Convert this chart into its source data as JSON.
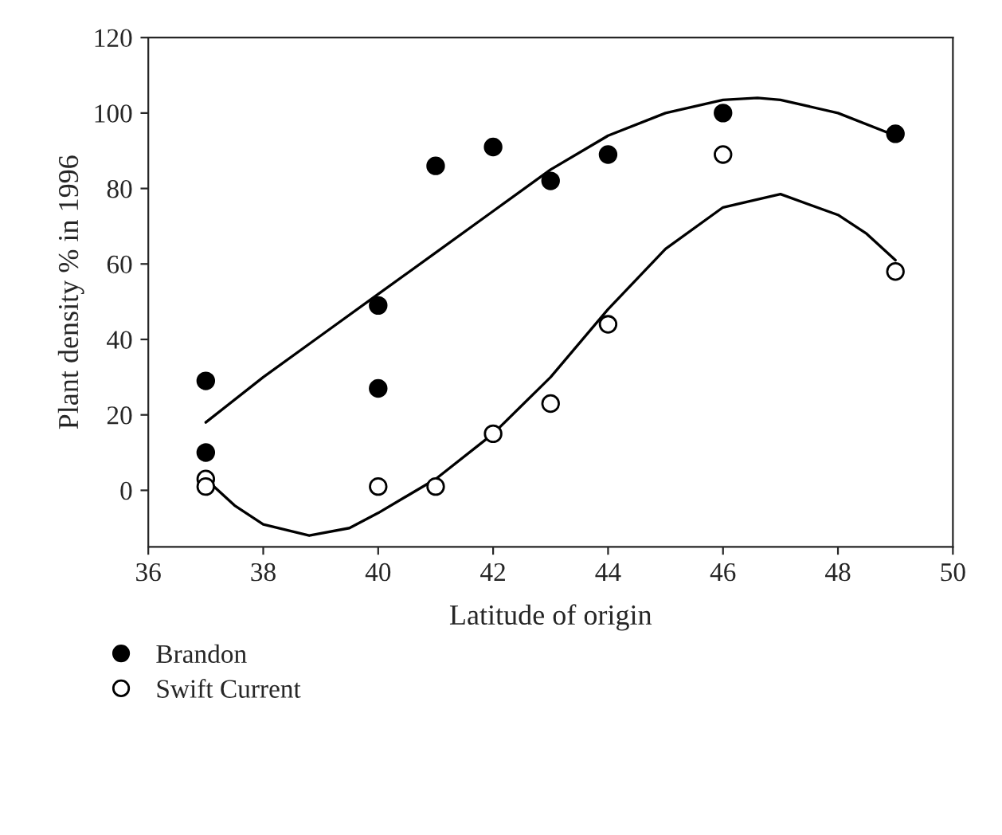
{
  "chart_data": {
    "type": "scatter",
    "xlabel": "Latitude of origin",
    "ylabel": "Plant density % in 1996",
    "xlim": [
      36,
      50
    ],
    "xticks": [
      36,
      38,
      40,
      42,
      44,
      46,
      48,
      50
    ],
    "ylim": [
      -15,
      120
    ],
    "yticks": [
      0,
      20,
      40,
      60,
      80,
      100,
      120
    ],
    "grid": false,
    "legend": "bottom left",
    "series": [
      {
        "name": "Brandon",
        "marker": "circle",
        "color": "#000000",
        "x": [
          37,
          37,
          40,
          40,
          41,
          42,
          43,
          44,
          46,
          49
        ],
        "values": [
          10,
          29,
          49,
          27,
          86,
          91,
          82,
          89,
          100,
          94.5
        ]
      },
      {
        "name": "Swift Current",
        "marker": "circle",
        "color": "#ffffff",
        "x": [
          37,
          37,
          40,
          41,
          42,
          43,
          44,
          46,
          49
        ],
        "values": [
          3,
          1,
          1,
          1,
          15,
          23,
          44,
          89,
          58
        ]
      },
      {
        "type": "line",
        "marker": "none",
        "color": "#000000",
        "line_style": "solid",
        "x": [
          37,
          38,
          39,
          40,
          41,
          42,
          43,
          44,
          45,
          46,
          46.6,
          47,
          48,
          49
        ],
        "values": [
          18,
          30,
          41,
          52,
          63,
          74,
          85,
          94,
          100,
          103.5,
          104,
          103.5,
          100,
          94
        ]
      },
      {
        "type": "line",
        "marker": "none",
        "color": "#000000",
        "line_style": "solid",
        "x": [
          37,
          37.5,
          38,
          38.8,
          39.5,
          40,
          41,
          42,
          43,
          44,
          45,
          46,
          47,
          48,
          48.5,
          49
        ],
        "values": [
          3,
          -4,
          -9,
          -12,
          -10,
          -6,
          3,
          15,
          30,
          48,
          64,
          75,
          78.5,
          73,
          68,
          61
        ]
      }
    ]
  }
}
